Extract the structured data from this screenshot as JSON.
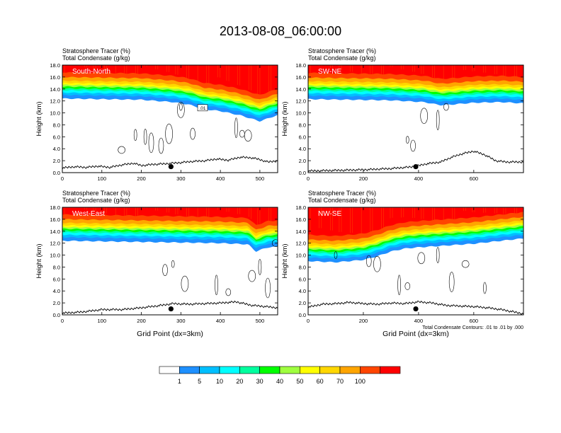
{
  "title": "2013-08-08_06:00:00",
  "colors": {
    "levels": [
      "#ffffff",
      "#1e90ff",
      "#00bfff",
      "#00ffff",
      "#00ff9f",
      "#00ff00",
      "#9fff3f",
      "#ffff00",
      "#ffd700",
      "#ffa500",
      "#ff4500",
      "#ff0000"
    ],
    "contour": "#000000",
    "terrain": "#000000",
    "marker": "#000000"
  },
  "colorbar": {
    "labels": [
      "1",
      "5",
      "10",
      "20",
      "30",
      "40",
      "50",
      "60",
      "70",
      "100"
    ]
  },
  "chart_data": [
    {
      "type": "heatmap",
      "name": "South-North",
      "label": "South-North",
      "left_title_1": "Stratosphere Tracer   (%)",
      "left_title_2": "Total Condensate   (g/kg)",
      "ylabel": "Height (km)",
      "xlabel": "",
      "xlim": [
        0,
        545
      ],
      "ylim": [
        0,
        18
      ],
      "xticks": [
        "0",
        "100",
        "200",
        "300",
        "400",
        "500"
      ],
      "yticks": [
        "0.0",
        "2.0",
        "4.0",
        "6.0",
        "8.0",
        "10.0",
        "12.0",
        "14.0",
        "16.0",
        "18.0"
      ],
      "marker_x": 275,
      "contour_label": ".01",
      "tropopause_km": [
        [
          0,
          13.6
        ],
        [
          100,
          13.5
        ],
        [
          200,
          13.4
        ],
        [
          280,
          13.0
        ],
        [
          320,
          12.6
        ],
        [
          360,
          11.8
        ],
        [
          400,
          11.5
        ],
        [
          450,
          10.8
        ],
        [
          480,
          10.2
        ],
        [
          500,
          9.8
        ],
        [
          530,
          10.5
        ],
        [
          545,
          10.8
        ]
      ],
      "terrain_km": [
        [
          0,
          0.8
        ],
        [
          30,
          1.0
        ],
        [
          60,
          0.9
        ],
        [
          90,
          1.1
        ],
        [
          120,
          0.9
        ],
        [
          150,
          1.3
        ],
        [
          180,
          1.6
        ],
        [
          200,
          1.2
        ],
        [
          230,
          1.4
        ],
        [
          260,
          1.5
        ],
        [
          300,
          1.7
        ],
        [
          330,
          1.9
        ],
        [
          360,
          2.0
        ],
        [
          390,
          2.3
        ],
        [
          420,
          2.1
        ],
        [
          450,
          2.6
        ],
        [
          480,
          2.5
        ],
        [
          500,
          2.2
        ],
        [
          520,
          1.8
        ],
        [
          545,
          2.0
        ]
      ],
      "clouds_km": [
        [
          300,
          11
        ],
        [
          330,
          6.5
        ],
        [
          300,
          10.5
        ],
        [
          440,
          7.5
        ],
        [
          455,
          6.5
        ],
        [
          470,
          6.2
        ],
        [
          210,
          6
        ],
        [
          225,
          5
        ],
        [
          150,
          3.8
        ],
        [
          185,
          6.3
        ],
        [
          250,
          4.5
        ],
        [
          270,
          6.5
        ]
      ]
    },
    {
      "type": "heatmap",
      "name": "SW-NE",
      "label": "SW-NE",
      "left_title_1": "Stratosphere Tracer   (%)",
      "left_title_2": "Total Condensate   (g/kg)",
      "ylabel": "Height (km)",
      "xlabel": "",
      "xlim": [
        0,
        780
      ],
      "ylim": [
        0,
        18
      ],
      "xticks": [
        "0",
        "200",
        "400",
        "600"
      ],
      "yticks": [
        "0.0",
        "2.0",
        "4.0",
        "6.0",
        "8.0",
        "10.0",
        "12.0",
        "14.0",
        "16.0",
        "18.0"
      ],
      "marker_x": 390,
      "contour_label": "",
      "tropopause_km": [
        [
          0,
          13.5
        ],
        [
          150,
          13.4
        ],
        [
          300,
          13.3
        ],
        [
          420,
          13.0
        ],
        [
          480,
          12.5
        ],
        [
          520,
          12.6
        ],
        [
          600,
          12.9
        ],
        [
          700,
          13.0
        ],
        [
          780,
          12.8
        ]
      ],
      "terrain_km": [
        [
          0,
          0.3
        ],
        [
          100,
          0.4
        ],
        [
          200,
          0.5
        ],
        [
          300,
          0.7
        ],
        [
          380,
          1.0
        ],
        [
          430,
          1.5
        ],
        [
          480,
          1.8
        ],
        [
          520,
          2.6
        ],
        [
          560,
          3.2
        ],
        [
          600,
          3.6
        ],
        [
          640,
          3.0
        ],
        [
          680,
          2.0
        ],
        [
          720,
          1.8
        ],
        [
          780,
          1.8
        ]
      ],
      "clouds_km": [
        [
          360,
          5.5
        ],
        [
          380,
          4.5
        ],
        [
          420,
          9.5
        ],
        [
          470,
          8.8
        ],
        [
          500,
          11.0
        ]
      ]
    },
    {
      "type": "heatmap",
      "name": "West-East",
      "label": "West-East",
      "left_title_1": "Stratosphere Tracer   (%)",
      "left_title_2": "Total Condensate   (g/kg)",
      "ylabel": "Height (km)",
      "xlabel": "Grid Point (dx=3km)",
      "xlim": [
        0,
        545
      ],
      "ylim": [
        0,
        18
      ],
      "xticks": [
        "0",
        "100",
        "200",
        "300",
        "400",
        "500"
      ],
      "yticks": [
        "0.0",
        "2.0",
        "4.0",
        "6.0",
        "8.0",
        "10.0",
        "12.0",
        "14.0",
        "16.0",
        "18.0"
      ],
      "marker_x": 275,
      "contour_label": "",
      "tropopause_km": [
        [
          0,
          13.6
        ],
        [
          100,
          13.5
        ],
        [
          200,
          13.4
        ],
        [
          300,
          13.3
        ],
        [
          400,
          13.2
        ],
        [
          470,
          13.0
        ],
        [
          490,
          11.8
        ],
        [
          520,
          12.5
        ],
        [
          545,
          12.6
        ]
      ],
      "terrain_km": [
        [
          0,
          0.3
        ],
        [
          50,
          0.5
        ],
        [
          100,
          0.9
        ],
        [
          150,
          0.9
        ],
        [
          200,
          1.2
        ],
        [
          250,
          1.6
        ],
        [
          280,
          1.9
        ],
        [
          320,
          1.8
        ],
        [
          360,
          1.9
        ],
        [
          400,
          2.0
        ],
        [
          440,
          2.2
        ],
        [
          480,
          1.6
        ],
        [
          500,
          1.5
        ],
        [
          545,
          1.2
        ]
      ],
      "clouds_km": [
        [
          280,
          8.5
        ],
        [
          260,
          7.5
        ],
        [
          310,
          5.2
        ],
        [
          390,
          5.0
        ],
        [
          420,
          3.8
        ],
        [
          480,
          6.5
        ],
        [
          500,
          8.0
        ],
        [
          520,
          4.5
        ],
        [
          540,
          12.0
        ]
      ]
    },
    {
      "type": "heatmap",
      "name": "NW-SE",
      "label": "NW-SE",
      "left_title_1": "Stratosphere Tracer   (%)",
      "left_title_2": "Total Condensate   (g/kg)",
      "ylabel": "Height (km)",
      "xlabel": "Grid Point (dx=3km)",
      "xlim": [
        0,
        780
      ],
      "ylim": [
        0,
        18
      ],
      "xticks": [
        "0",
        "200",
        "400",
        "600"
      ],
      "yticks": [
        "0.0",
        "2.0",
        "4.0",
        "6.0",
        "8.0",
        "10.0",
        "12.0",
        "14.0",
        "16.0",
        "18.0"
      ],
      "marker_x": 390,
      "contour_label": "",
      "footnote": "Total Condensate Contours: .01 to .01 by .000",
      "tropopause_km": [
        [
          0,
          10.2
        ],
        [
          100,
          10.0
        ],
        [
          150,
          10.2
        ],
        [
          200,
          10.4
        ],
        [
          250,
          11.0
        ],
        [
          300,
          11.8
        ],
        [
          350,
          12.3
        ],
        [
          400,
          12.5
        ],
        [
          500,
          12.8
        ],
        [
          600,
          13.1
        ],
        [
          700,
          13.6
        ],
        [
          780,
          14.0
        ]
      ],
      "terrain_km": [
        [
          0,
          1.3
        ],
        [
          50,
          1.8
        ],
        [
          100,
          1.9
        ],
        [
          150,
          2.1
        ],
        [
          200,
          1.9
        ],
        [
          250,
          1.8
        ],
        [
          300,
          2.0
        ],
        [
          350,
          1.9
        ],
        [
          400,
          2.2
        ],
        [
          450,
          2.0
        ],
        [
          500,
          1.6
        ],
        [
          600,
          1.4
        ],
        [
          650,
          1.2
        ],
        [
          700,
          0.9
        ],
        [
          780,
          0.2
        ]
      ],
      "clouds_km": [
        [
          100,
          10.0
        ],
        [
          220,
          9.0
        ],
        [
          250,
          8.5
        ],
        [
          330,
          5.0
        ],
        [
          360,
          4.8
        ],
        [
          410,
          9.5
        ],
        [
          470,
          10.0
        ],
        [
          520,
          5.5
        ],
        [
          570,
          8.5
        ],
        [
          640,
          4.5
        ]
      ]
    }
  ]
}
